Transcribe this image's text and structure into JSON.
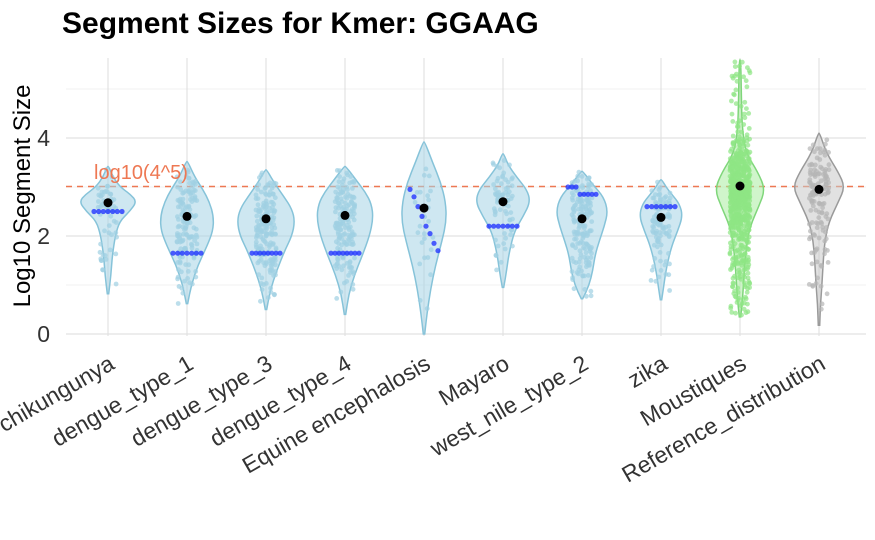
{
  "chart_data": {
    "type": "violin",
    "title": "Segment Sizes for Kmer: GGAAG",
    "xlabel": "",
    "ylabel": "Log10 Segment Size",
    "ylim": [
      0,
      5.6
    ],
    "yticks": [
      0,
      2,
      4
    ],
    "grid": true,
    "reference_line": {
      "y": 3.0103,
      "label": "log10(4^5)",
      "color": "#ee7853",
      "style": "dashed"
    },
    "categories": [
      {
        "name": "chikungunya",
        "color": "#a6d4e5",
        "mean": 2.68,
        "min": 0.82,
        "max": 3.42,
        "shape": [
          [
            0.82,
            0.02
          ],
          [
            1.2,
            0.08
          ],
          [
            1.6,
            0.12
          ],
          [
            2.0,
            0.2
          ],
          [
            2.3,
            0.32
          ],
          [
            2.5,
            0.6
          ],
          [
            2.7,
            0.8
          ],
          [
            2.85,
            0.62
          ],
          [
            3.0,
            0.34
          ],
          [
            3.2,
            0.14
          ],
          [
            3.42,
            0.02
          ]
        ],
        "highlight": [
          2.5,
          2.5,
          2.5,
          2.5,
          2.5,
          2.5,
          2.5
        ],
        "npts": 60
      },
      {
        "name": "dengue_type_1",
        "color": "#a6d4e5",
        "mean": 2.4,
        "min": 0.62,
        "max": 3.52,
        "shape": [
          [
            0.62,
            0.02
          ],
          [
            1.0,
            0.12
          ],
          [
            1.4,
            0.3
          ],
          [
            1.8,
            0.56
          ],
          [
            2.1,
            0.72
          ],
          [
            2.4,
            0.74
          ],
          [
            2.7,
            0.62
          ],
          [
            2.95,
            0.44
          ],
          [
            3.2,
            0.22
          ],
          [
            3.52,
            0.02
          ]
        ],
        "highlight": [
          1.65,
          1.65,
          1.65,
          1.65,
          1.65,
          1.65,
          1.65
        ],
        "npts": 140
      },
      {
        "name": "dengue_type_3",
        "color": "#a6d4e5",
        "mean": 2.35,
        "min": 0.5,
        "max": 3.35,
        "shape": [
          [
            0.5,
            0.02
          ],
          [
            0.9,
            0.12
          ],
          [
            1.3,
            0.3
          ],
          [
            1.7,
            0.52
          ],
          [
            2.0,
            0.72
          ],
          [
            2.3,
            0.8
          ],
          [
            2.55,
            0.72
          ],
          [
            2.8,
            0.5
          ],
          [
            3.05,
            0.26
          ],
          [
            3.35,
            0.02
          ]
        ],
        "highlight": [
          1.65,
          1.65,
          1.65,
          1.65,
          1.65,
          1.65,
          1.65,
          1.65
        ],
        "npts": 180
      },
      {
        "name": "dengue_type_4",
        "color": "#a6d4e5",
        "mean": 2.42,
        "min": 0.4,
        "max": 3.42,
        "shape": [
          [
            0.4,
            0.02
          ],
          [
            0.8,
            0.1
          ],
          [
            1.2,
            0.26
          ],
          [
            1.6,
            0.48
          ],
          [
            2.0,
            0.68
          ],
          [
            2.35,
            0.78
          ],
          [
            2.65,
            0.74
          ],
          [
            2.9,
            0.56
          ],
          [
            3.15,
            0.3
          ],
          [
            3.42,
            0.02
          ]
        ],
        "highlight": [
          1.65,
          1.65,
          1.65,
          1.65,
          1.65,
          1.65,
          1.65,
          1.65
        ],
        "npts": 170
      },
      {
        "name": "Equine encephalosis",
        "color": "#a6d4e5",
        "mean": 2.57,
        "min": 0.0,
        "max": 3.92,
        "shape": [
          [
            0.0,
            0.02
          ],
          [
            0.4,
            0.08
          ],
          [
            0.9,
            0.18
          ],
          [
            1.4,
            0.32
          ],
          [
            1.9,
            0.5
          ],
          [
            2.3,
            0.62
          ],
          [
            2.7,
            0.6
          ],
          [
            3.1,
            0.46
          ],
          [
            3.5,
            0.24
          ],
          [
            3.92,
            0.02
          ]
        ],
        "highlight": [
          2.95,
          2.8,
          2.6,
          2.4,
          2.2,
          2.05,
          1.85,
          1.7
        ],
        "npts": 25
      },
      {
        "name": "Mayaro",
        "color": "#a6d4e5",
        "mean": 2.7,
        "min": 0.95,
        "max": 3.68,
        "shape": [
          [
            0.95,
            0.02
          ],
          [
            1.3,
            0.1
          ],
          [
            1.7,
            0.18
          ],
          [
            2.1,
            0.32
          ],
          [
            2.4,
            0.56
          ],
          [
            2.7,
            0.76
          ],
          [
            2.95,
            0.66
          ],
          [
            3.2,
            0.38
          ],
          [
            3.45,
            0.14
          ],
          [
            3.68,
            0.02
          ]
        ],
        "highlight": [
          2.2,
          2.2,
          2.2,
          2.2,
          2.2,
          2.2,
          2.2
        ],
        "npts": 70
      },
      {
        "name": "west_nile_type_2",
        "color": "#a6d4e5",
        "mean": 2.35,
        "min": 0.72,
        "max": 3.32,
        "shape": [
          [
            0.72,
            0.02
          ],
          [
            1.0,
            0.2
          ],
          [
            1.3,
            0.3
          ],
          [
            1.6,
            0.36
          ],
          [
            1.9,
            0.48
          ],
          [
            2.2,
            0.62
          ],
          [
            2.5,
            0.72
          ],
          [
            2.8,
            0.6
          ],
          [
            3.05,
            0.3
          ],
          [
            3.32,
            0.02
          ]
        ],
        "highlight": [
          3.0,
          3.0,
          3.0,
          2.85,
          2.85,
          2.85,
          2.85,
          2.85
        ],
        "npts": 170
      },
      {
        "name": "zika",
        "color": "#a6d4e5",
        "mean": 2.38,
        "min": 0.7,
        "max": 3.15,
        "shape": [
          [
            0.7,
            0.02
          ],
          [
            1.0,
            0.08
          ],
          [
            1.4,
            0.16
          ],
          [
            1.8,
            0.3
          ],
          [
            2.1,
            0.46
          ],
          [
            2.4,
            0.6
          ],
          [
            2.65,
            0.52
          ],
          [
            2.85,
            0.3
          ],
          [
            3.0,
            0.14
          ],
          [
            3.15,
            0.02
          ]
        ],
        "highlight": [
          2.6,
          2.6,
          2.6,
          2.6,
          2.6,
          2.6,
          2.6
        ],
        "npts": 100
      },
      {
        "name": "Moustiques",
        "color": "#a9eca0",
        "mean": 3.02,
        "min": 0.35,
        "max": 5.6,
        "shape": [
          [
            0.35,
            0.02
          ],
          [
            0.8,
            0.08
          ],
          [
            1.3,
            0.12
          ],
          [
            1.8,
            0.18
          ],
          [
            2.2,
            0.28
          ],
          [
            2.6,
            0.52
          ],
          [
            2.95,
            0.7
          ],
          [
            3.3,
            0.5
          ],
          [
            3.7,
            0.16
          ],
          [
            4.2,
            0.06
          ],
          [
            4.8,
            0.04
          ],
          [
            5.6,
            0.02
          ]
        ],
        "highlight": [],
        "npts": 700
      },
      {
        "name": "Reference_distribution",
        "color": "#c8c8c8",
        "mean": 2.95,
        "min": 0.18,
        "max": 4.1,
        "shape": [
          [
            0.18,
            0.02
          ],
          [
            0.6,
            0.04
          ],
          [
            1.0,
            0.08
          ],
          [
            1.5,
            0.12
          ],
          [
            1.9,
            0.16
          ],
          [
            2.3,
            0.28
          ],
          [
            2.7,
            0.54
          ],
          [
            3.0,
            0.72
          ],
          [
            3.3,
            0.54
          ],
          [
            3.7,
            0.2
          ],
          [
            4.1,
            0.02
          ]
        ],
        "highlight": [],
        "npts": 140
      }
    ]
  }
}
